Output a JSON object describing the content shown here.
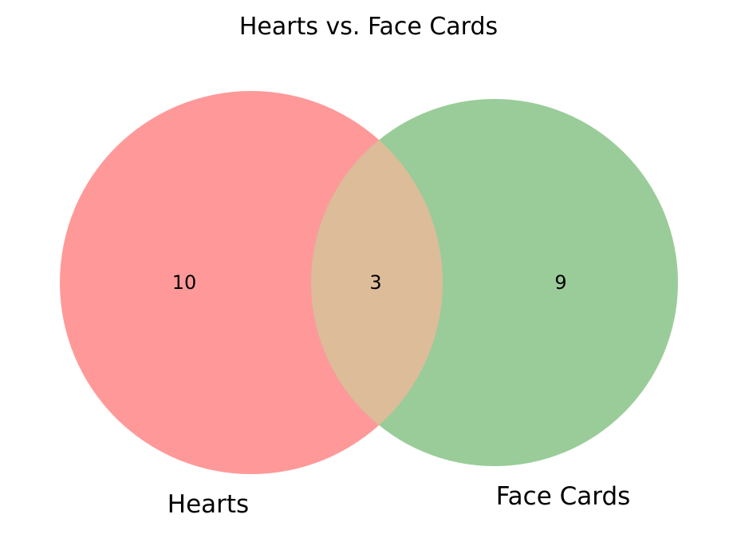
{
  "diagram": {
    "type": "venn",
    "title": "Hearts vs. Face Cards",
    "sets": [
      {
        "name": "Hearts",
        "only_count": 10,
        "color": "#ff9999"
      },
      {
        "name": "Face Cards",
        "only_count": 9,
        "color": "#99cc99"
      }
    ],
    "intersection": {
      "count": 3,
      "color": "#ddbc99"
    },
    "labels": {
      "left_only": "10",
      "intersection": "3",
      "right_only": "9",
      "left_set": "Hearts",
      "right_set": "Face Cards"
    }
  }
}
